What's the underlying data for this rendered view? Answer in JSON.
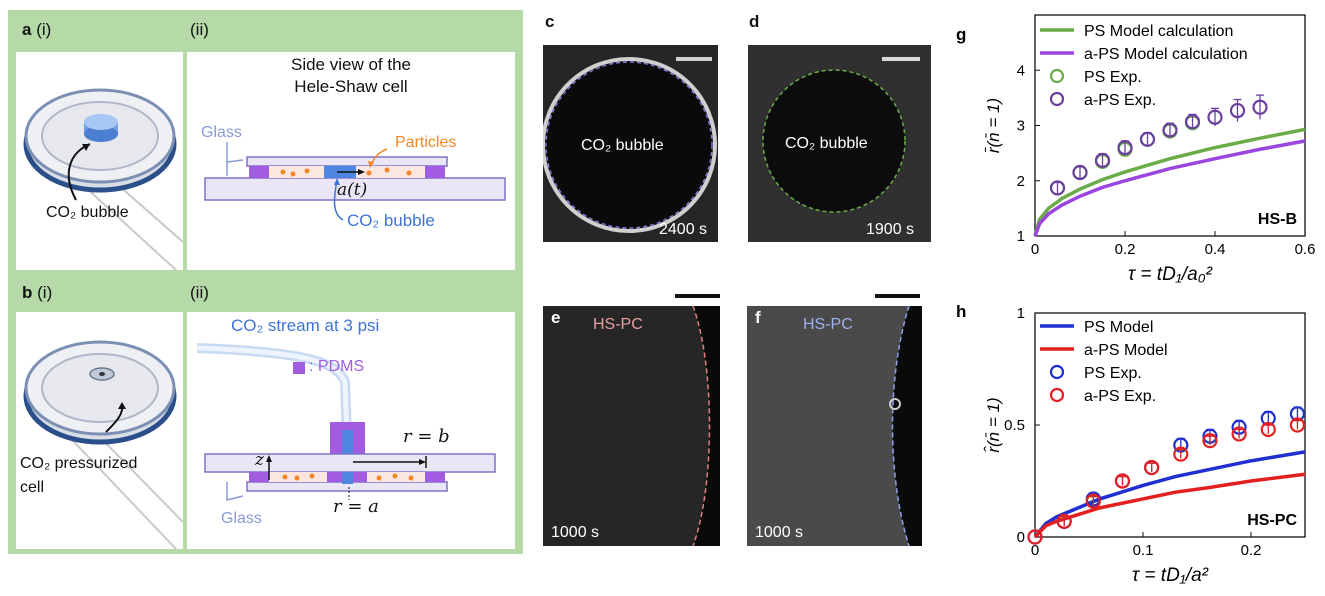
{
  "panel_a": {
    "label_main": "a",
    "label_i": "(i)",
    "label_ii": "(ii)",
    "title_line1": "Side view of the",
    "title_line2": "Hele-Shaw cell",
    "glass": "Glass",
    "particles": "Particles",
    "a_t": "a(t)",
    "co2_bubble_right": "CO₂ bubble",
    "co2_bubble_left": "CO₂ bubble"
  },
  "panel_b": {
    "label_main": "b",
    "label_i": "(i)",
    "label_ii": "(ii)",
    "stream": "CO₂ stream at 3 psi",
    "pdms": ": PDMS",
    "r_b": "r = b",
    "z": "z",
    "r_a": "r = a",
    "glass": "Glass",
    "pressurized_line1": "CO₂ pressurized",
    "pressurized_line2": "cell"
  },
  "micrographs": {
    "c": {
      "label": "c",
      "center_text": "CO₂ bubble",
      "time": "2400 s"
    },
    "d": {
      "label": "d",
      "center_text": "CO₂ bubble",
      "time": "1900 s"
    },
    "e": {
      "label": "e",
      "tag": "HS-PC",
      "time": "1000 s"
    },
    "f": {
      "label": "f",
      "tag": "HS-PC",
      "time": "1000 s"
    }
  },
  "colors": {
    "ps_model_g": "#6aac48",
    "aps_model_g": "#9b45e0",
    "ps_exp_g": "#6aac48",
    "aps_exp_g": "#6b3fa0",
    "ps_model_h": "#1f2fd0",
    "aps_model_h": "#e41f1f",
    "tag_e": "#e8a0a0",
    "tag_f": "#9fb0ee"
  },
  "chart_data": [
    {
      "type": "line",
      "panel_label": "g",
      "xlabel": "τ = tD₁/a₀²",
      "ylabel": "r̄(n̄ = 1)",
      "annotation": "HS-B",
      "xlim": [
        0,
        0.6
      ],
      "ylim": [
        1,
        5
      ],
      "xticks": [
        "0",
        "0.2",
        "0.4",
        "0.6"
      ],
      "yticks": [
        "1",
        "2",
        "3",
        "4"
      ],
      "legend_position": "top",
      "series": [
        {
          "name": "PS Model calculation",
          "kind": "line",
          "x": [
            0,
            0.01,
            0.03,
            0.06,
            0.1,
            0.15,
            0.2,
            0.3,
            0.4,
            0.5,
            0.6
          ],
          "y": [
            1.0,
            1.3,
            1.5,
            1.68,
            1.85,
            2.02,
            2.16,
            2.4,
            2.6,
            2.77,
            2.93
          ]
        },
        {
          "name": "a-PS Model calculation",
          "kind": "line",
          "x": [
            0,
            0.01,
            0.03,
            0.06,
            0.1,
            0.15,
            0.2,
            0.3,
            0.4,
            0.5,
            0.6
          ],
          "y": [
            1.0,
            1.22,
            1.4,
            1.56,
            1.72,
            1.88,
            2.0,
            2.22,
            2.4,
            2.57,
            2.72
          ]
        },
        {
          "name": "PS Exp.",
          "kind": "scatter",
          "x": [
            0.05,
            0.1,
            0.15,
            0.2,
            0.25,
            0.3,
            0.35
          ],
          "y": [
            1.87,
            2.15,
            2.35,
            2.57,
            2.75,
            2.9,
            3.05
          ]
        },
        {
          "name": "a-PS Exp.",
          "kind": "scatter",
          "x": [
            0.05,
            0.1,
            0.15,
            0.2,
            0.25,
            0.3,
            0.35,
            0.4,
            0.45,
            0.5
          ],
          "y": [
            1.87,
            2.15,
            2.37,
            2.6,
            2.75,
            2.92,
            3.07,
            3.15,
            3.27,
            3.33
          ],
          "err": [
            0.1,
            0.1,
            0.12,
            0.12,
            0.12,
            0.12,
            0.13,
            0.16,
            0.2,
            0.22
          ]
        }
      ]
    },
    {
      "type": "line",
      "panel_label": "h",
      "xlabel": "τ = tD₁/a²",
      "ylabel": "r̂(n̄ = 1)",
      "annotation": "HS-PC",
      "xlim": [
        0,
        0.25
      ],
      "ylim": [
        0,
        1
      ],
      "xticks": [
        "0",
        "0.1",
        "0.2"
      ],
      "yticks": [
        "0",
        "0.5",
        "1"
      ],
      "legend_position": "top",
      "series": [
        {
          "name": "PS Model",
          "kind": "line",
          "x": [
            0,
            0.01,
            0.02,
            0.04,
            0.06,
            0.08,
            0.1,
            0.13,
            0.16,
            0.2,
            0.25
          ],
          "y": [
            0,
            0.06,
            0.09,
            0.13,
            0.17,
            0.2,
            0.23,
            0.27,
            0.3,
            0.34,
            0.38
          ]
        },
        {
          "name": "a-PS Model",
          "kind": "line",
          "x": [
            0,
            0.01,
            0.02,
            0.04,
            0.06,
            0.08,
            0.1,
            0.13,
            0.16,
            0.2,
            0.25
          ],
          "y": [
            0,
            0.05,
            0.07,
            0.1,
            0.13,
            0.15,
            0.17,
            0.2,
            0.22,
            0.25,
            0.28
          ]
        },
        {
          "name": "PS Exp.",
          "kind": "scatter",
          "x": [
            0,
            0.027,
            0.054,
            0.081,
            0.108,
            0.135,
            0.162,
            0.189,
            0.216,
            0.243
          ],
          "y": [
            0,
            0.07,
            0.17,
            0.25,
            0.31,
            0.41,
            0.45,
            0.49,
            0.53,
            0.55
          ],
          "err": [
            0,
            0.02,
            0.02,
            0.02,
            0.02,
            0.03,
            0.03,
            0.03,
            0.03,
            0.03
          ]
        },
        {
          "name": "a-PS Exp.",
          "kind": "scatter",
          "x": [
            0,
            0.027,
            0.054,
            0.081,
            0.108,
            0.135,
            0.162,
            0.189,
            0.216,
            0.243
          ],
          "y": [
            0,
            0.07,
            0.16,
            0.25,
            0.31,
            0.37,
            0.43,
            0.46,
            0.48,
            0.5
          ],
          "err": [
            0,
            0.02,
            0.02,
            0.02,
            0.02,
            0.02,
            0.02,
            0.02,
            0.02,
            0.02
          ]
        }
      ]
    }
  ]
}
